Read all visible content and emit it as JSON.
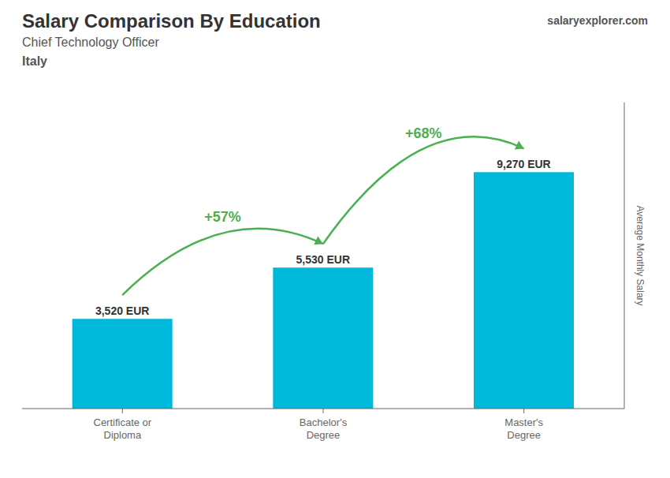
{
  "chart_data": {
    "type": "bar",
    "title": "Salary Comparison By Education",
    "subtitle": [
      "Chief Technology Officer",
      "Italy"
    ],
    "source": "salaryexplorer.com",
    "ylabel": "Average Monthly Salary",
    "categories": [
      "Certificate or\nDiploma",
      "Bachelor's\nDegree",
      "Master's\nDegree"
    ],
    "values": [
      3520,
      5530,
      9270
    ],
    "value_labels": [
      "3,520 EUR",
      "5,530 EUR",
      "9,270 EUR"
    ],
    "data_labels": true,
    "annotations": [
      "+57%",
      "+68%"
    ],
    "color": "#00b8d9",
    "ylim": [
      0,
      12000
    ],
    "tick_labels": "x",
    "grid": false
  }
}
